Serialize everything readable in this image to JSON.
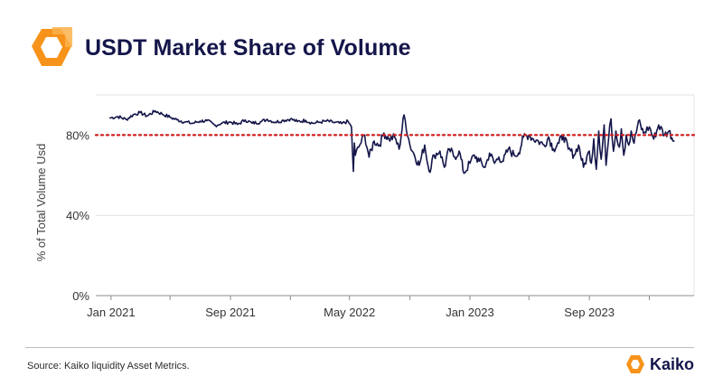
{
  "header": {
    "title": "USDT Market Share of Volume"
  },
  "footer": {
    "source": "Source: Kaiko liquidity Asset Metrics.",
    "brand": "Kaiko"
  },
  "colors": {
    "line": "#14164a",
    "reference": "#d11c1c",
    "logo_orange": "#f7931a",
    "title": "#14164a"
  },
  "chart_data": {
    "type": "line",
    "title": "USDT Market Share of Volume",
    "xlabel": "",
    "ylabel": "% of Total Volume Usd",
    "yticks": [
      0,
      40,
      80
    ],
    "ytick_labels": [
      "0%",
      "40%",
      "80%"
    ],
    "xticks": [
      "2021-01-01",
      "2021-09-01",
      "2022-05-01",
      "2023-01-01",
      "2023-09-01"
    ],
    "xtick_labels": [
      "Jan 2021",
      "Sep 2021",
      "May 2022",
      "Jan 2023",
      "Sep 2023"
    ],
    "xlim": [
      "2020-12-01",
      "2024-04-01"
    ],
    "ylim": [
      0,
      100
    ],
    "grid": "horizontal",
    "reference_line": {
      "y": 80,
      "style": "dotted",
      "color": "#d11c1c"
    },
    "series": [
      {
        "x": [
          "2020-12-30",
          "2021-01-15",
          "2021-02-01",
          "2021-02-15",
          "2021-03-01",
          "2021-03-15",
          "2021-04-01",
          "2021-04-15",
          "2021-05-01",
          "2021-05-15",
          "2021-06-01",
          "2021-06-15",
          "2021-07-01",
          "2021-07-15",
          "2021-08-01",
          "2021-08-15",
          "2021-09-01",
          "2021-09-15",
          "2021-10-01",
          "2021-10-15",
          "2021-11-01",
          "2021-11-15",
          "2021-12-01",
          "2021-12-15",
          "2022-01-01",
          "2022-01-15",
          "2022-02-01",
          "2022-02-15",
          "2022-03-01",
          "2022-03-15",
          "2022-04-01",
          "2022-04-15",
          "2022-04-28",
          "2022-05-05",
          "2022-05-09",
          "2022-05-11",
          "2022-05-13",
          "2022-05-20",
          "2022-06-01",
          "2022-06-10",
          "2022-06-20",
          "2022-07-01",
          "2022-07-10",
          "2022-07-20",
          "2022-08-01",
          "2022-08-10",
          "2022-08-20",
          "2022-09-01",
          "2022-09-10",
          "2022-09-20",
          "2022-10-01",
          "2022-10-10",
          "2022-10-20",
          "2022-11-01",
          "2022-11-10",
          "2022-11-20",
          "2022-12-01",
          "2022-12-10",
          "2022-12-20",
          "2023-01-01",
          "2023-01-10",
          "2023-01-20",
          "2023-02-01",
          "2023-02-10",
          "2023-02-20",
          "2023-03-01",
          "2023-03-10",
          "2023-03-20",
          "2023-04-01",
          "2023-04-10",
          "2023-04-20",
          "2023-05-01",
          "2023-05-10",
          "2023-05-20",
          "2023-06-01",
          "2023-06-10",
          "2023-06-20",
          "2023-07-01",
          "2023-07-10",
          "2023-07-20",
          "2023-08-01",
          "2023-08-10",
          "2023-08-20",
          "2023-09-01",
          "2023-09-05",
          "2023-09-10",
          "2023-09-15",
          "2023-09-20",
          "2023-09-25",
          "2023-10-01",
          "2023-10-05",
          "2023-10-10",
          "2023-10-15",
          "2023-10-20",
          "2023-10-25",
          "2023-11-01",
          "2023-11-05",
          "2023-11-10",
          "2023-11-15",
          "2023-11-20",
          "2023-11-25",
          "2023-12-01",
          "2023-12-10",
          "2023-12-20",
          "2024-01-01",
          "2024-01-10",
          "2024-01-20",
          "2024-02-01",
          "2024-02-10",
          "2024-02-20"
        ],
        "values": [
          88.5,
          89.2,
          87.8,
          90.1,
          91.2,
          89.5,
          92.0,
          90.5,
          88.9,
          87.6,
          86.5,
          85.8,
          86.9,
          87.2,
          84.8,
          86.0,
          86.5,
          85.3,
          87.5,
          85.9,
          86.6,
          87.8,
          86.4,
          87.2,
          88.0,
          86.7,
          87.3,
          85.9,
          86.4,
          87.0,
          86.2,
          85.7,
          86.8,
          84.0,
          62.0,
          76.0,
          70.0,
          74.0,
          80.0,
          69.0,
          77.0,
          75.0,
          81.0,
          78.0,
          79.0,
          73.0,
          90.0,
          75.0,
          70.0,
          65.0,
          75.0,
          62.0,
          70.0,
          72.0,
          64.0,
          73.0,
          69.0,
          72.0,
          61.0,
          66.0,
          70.0,
          67.0,
          64.0,
          71.0,
          66.0,
          69.0,
          67.0,
          73.0,
          70.0,
          71.0,
          79.0,
          80.0,
          78.0,
          77.0,
          75.0,
          79.0,
          73.0,
          76.0,
          80.0,
          73.0,
          70.0,
          75.0,
          64.0,
          72.0,
          66.0,
          78.0,
          63.0,
          82.0,
          68.0,
          85.0,
          65.0,
          78.0,
          88.0,
          72.0,
          82.0,
          74.0,
          83.0,
          70.0,
          80.0,
          75.0,
          82.0,
          76.0,
          87.0,
          81.0,
          84.0,
          78.0,
          85.0,
          80.0,
          82.0,
          77.0
        ]
      }
    ]
  }
}
